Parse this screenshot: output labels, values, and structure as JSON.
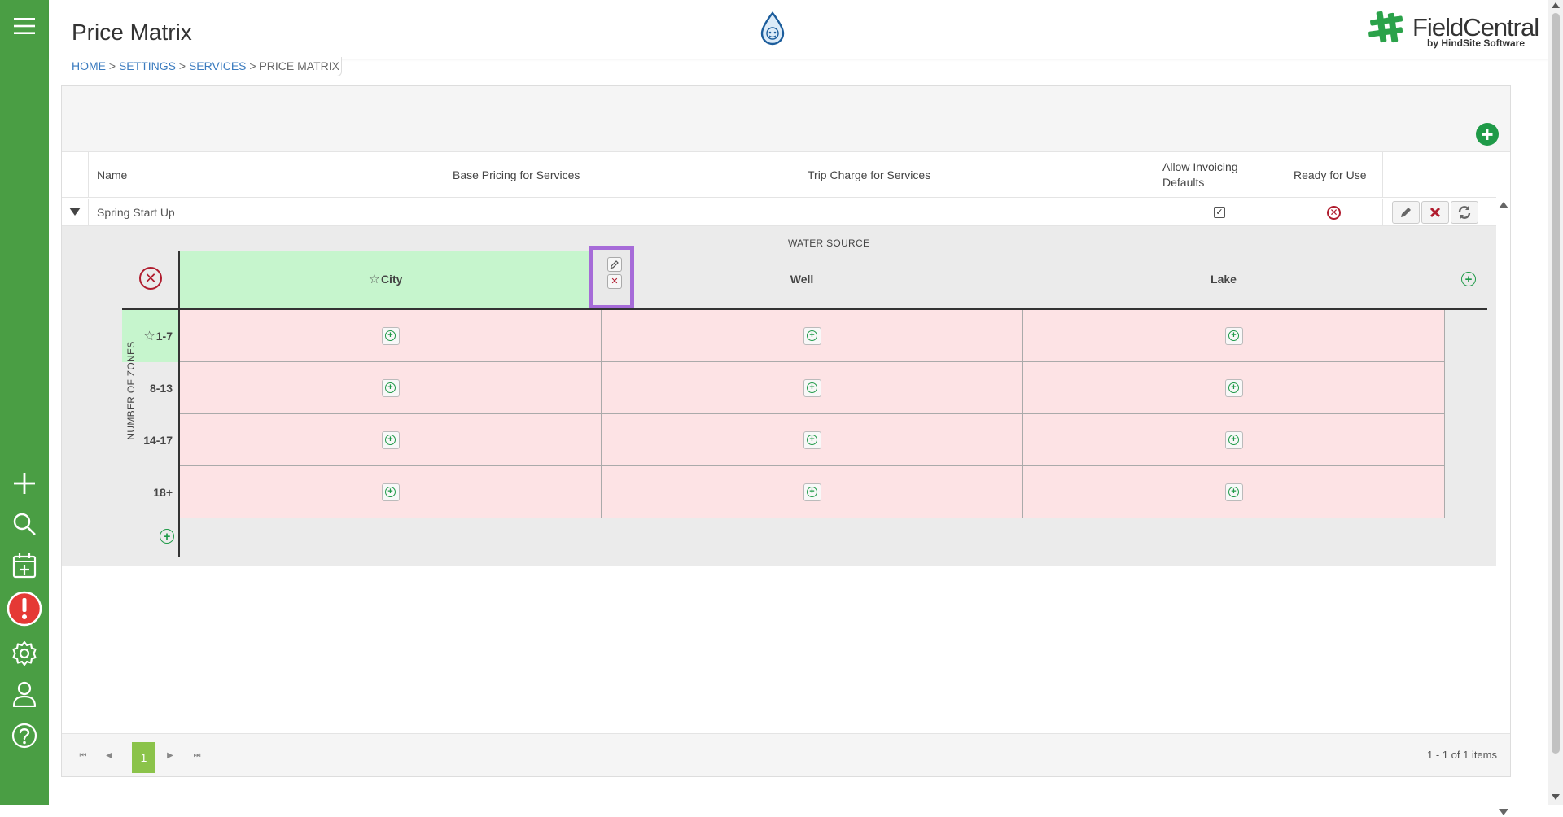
{
  "page": {
    "title": "Price Matrix"
  },
  "breadcrumb": {
    "home": "HOME",
    "settings": "SETTINGS",
    "services": "SERVICES",
    "current": "PRICE MATRIX",
    "separator": ">"
  },
  "brand": {
    "name": "FieldCentral",
    "subtitle": "by HindSite Software"
  },
  "sidebar": {
    "icons": [
      "menu-icon",
      "plus-icon",
      "search-icon",
      "calendar-add-icon",
      "alert-icon",
      "gear-icon",
      "user-icon",
      "help-icon"
    ]
  },
  "grid": {
    "columns": [
      "Name",
      "Base Pricing for Services",
      "Trip Charge for Services",
      "Allow Invoicing Defaults",
      "Ready for Use"
    ],
    "rows": [
      {
        "name": "Spring Start Up",
        "base_pricing": "",
        "trip_charge": "",
        "allow_invoicing_defaults": true,
        "ready_for_use": false
      }
    ]
  },
  "matrix": {
    "column_axis_label": "WATER SOURCE",
    "row_axis_label": "NUMBER OF ZONES",
    "columns": [
      {
        "label": "City",
        "favorite": true
      },
      {
        "label": "Well",
        "favorite": false
      },
      {
        "label": "Lake",
        "favorite": false
      }
    ],
    "rows": [
      {
        "label": "1-7",
        "favorite": true
      },
      {
        "label": "8-13",
        "favorite": false
      },
      {
        "label": "14-17",
        "favorite": false
      },
      {
        "label": "18+",
        "favorite": false
      }
    ],
    "colors": {
      "favorite_bg": "#c6f5cd",
      "empty_cell_bg": "#fde3e5",
      "highlight_border": "#a66bd8"
    }
  },
  "pager": {
    "current_page": "1",
    "info": "1 - 1 of 1 items"
  },
  "colors": {
    "sidebar": "#4a9e44",
    "accent_green": "#1f9a48",
    "delete_red": "#b01c2e",
    "link_blue": "#3a7bbf"
  }
}
